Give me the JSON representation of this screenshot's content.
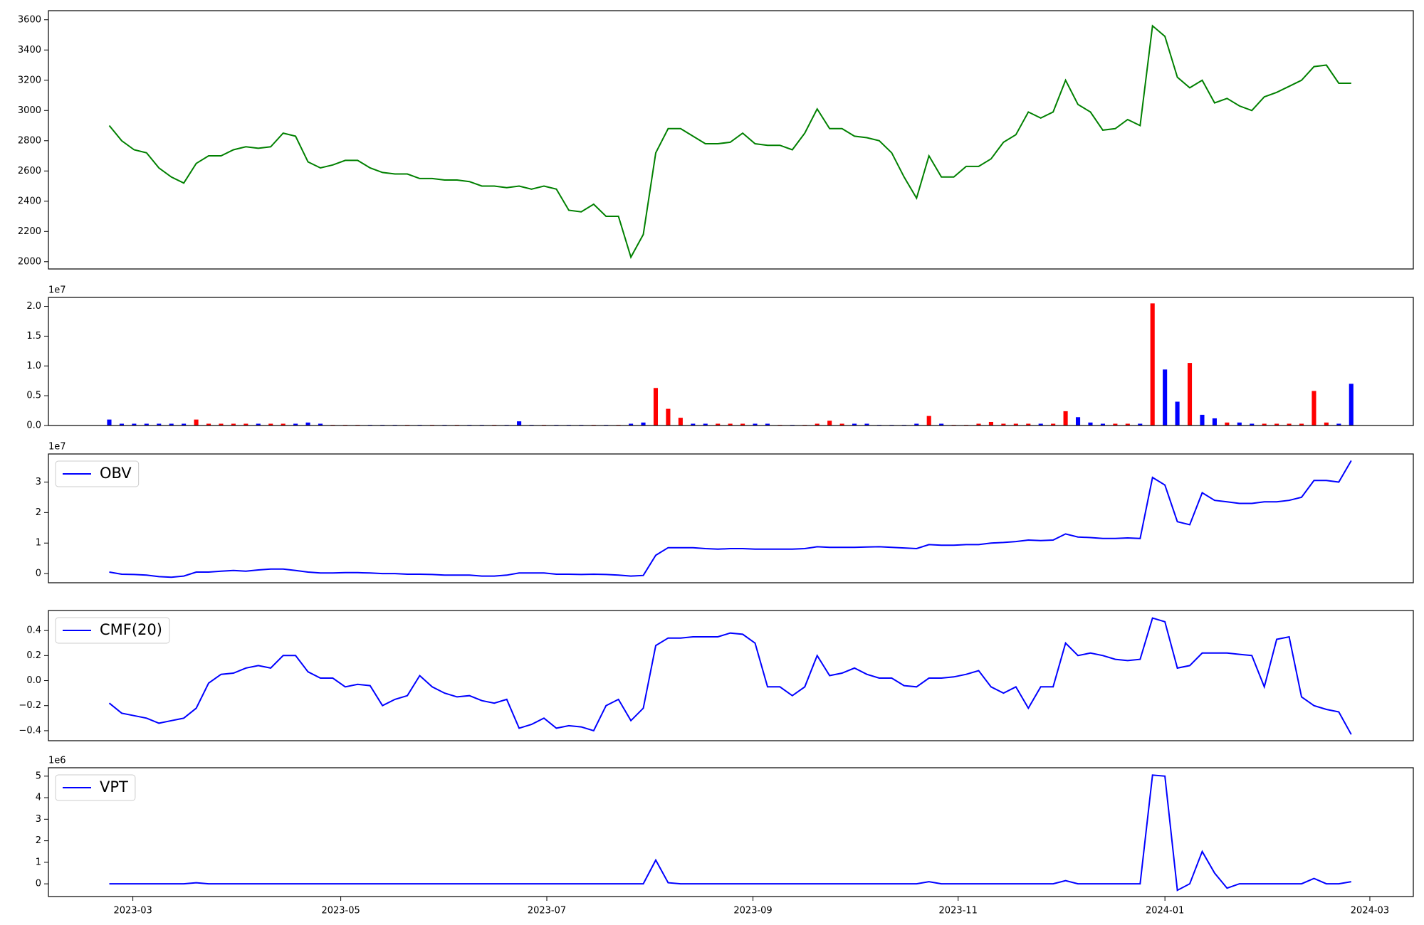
{
  "chart_data": [
    {
      "type": "line",
      "color": "#008000",
      "xlim": [
        -4.9,
        105
      ],
      "ylim": [
        1952,
        3660
      ],
      "yticks": [
        2000,
        2200,
        2400,
        2600,
        2800,
        3000,
        3200,
        3400,
        3600
      ],
      "values": [
        2900,
        2800,
        2740,
        2720,
        2620,
        2560,
        2520,
        2650,
        2700,
        2700,
        2740,
        2760,
        2750,
        2760,
        2850,
        2830,
        2660,
        2620,
        2640,
        2670,
        2670,
        2620,
        2590,
        2580,
        2580,
        2550,
        2550,
        2540,
        2540,
        2530,
        2500,
        2500,
        2490,
        2500,
        2480,
        2500,
        2480,
        2340,
        2330,
        2380,
        2300,
        2300,
        2030,
        2180,
        2720,
        2880,
        2880,
        2830,
        2780,
        2780,
        2790,
        2850,
        2780,
        2770,
        2770,
        2740,
        2850,
        3010,
        2880,
        2880,
        2830,
        2820,
        2800,
        2720,
        2560,
        2420,
        2700,
        2560,
        2560,
        2630,
        2630,
        2680,
        2790,
        2840,
        2990,
        2950,
        2990,
        3200,
        3040,
        2990,
        2870,
        2880,
        2940,
        2900,
        3560,
        3490,
        3220,
        3150,
        3200,
        3050,
        3080,
        3030,
        3000,
        3090,
        3120,
        3160,
        3200,
        3290,
        3300,
        3180,
        3180
      ]
    },
    {
      "type": "bar",
      "y_offset_label": "1e7",
      "xlim": [
        -4.9,
        105
      ],
      "ylim": [
        0,
        2.15
      ],
      "yticks": [
        {
          "value": 0,
          "label": "0.0"
        },
        {
          "value": 0.5,
          "label": "0.5"
        },
        {
          "value": 1,
          "label": "1.0"
        },
        {
          "value": 1.5,
          "label": "1.5"
        },
        {
          "value": 2,
          "label": "2.0"
        }
      ],
      "values": [
        0.1,
        0.03,
        0.03,
        0.03,
        0.03,
        0.03,
        0.03,
        0.1,
        0.03,
        0.03,
        0.03,
        0.03,
        0.03,
        0.03,
        0.03,
        0.03,
        0.05,
        0.03,
        0.01,
        0.01,
        0.01,
        0.01,
        0.01,
        0.01,
        0.01,
        0.01,
        0.01,
        0.01,
        0.01,
        0.01,
        0.01,
        0.01,
        0.01,
        0.07,
        0.01,
        0.01,
        0.01,
        0.01,
        0.01,
        0.01,
        0.01,
        0.01,
        0.03,
        0.05,
        0.63,
        0.28,
        0.13,
        0.03,
        0.03,
        0.03,
        0.03,
        0.03,
        0.03,
        0.03,
        0.01,
        0.01,
        0.01,
        0.03,
        0.08,
        0.03,
        0.03,
        0.03,
        0.01,
        0.01,
        0.01,
        0.03,
        0.16,
        0.03,
        0.01,
        0.01,
        0.03,
        0.06,
        0.03,
        0.03,
        0.03,
        0.03,
        0.03,
        0.24,
        0.14,
        0.05,
        0.03,
        0.03,
        0.03,
        0.03,
        2.05,
        0.94,
        0.4,
        1.05,
        0.18,
        0.12,
        0.05,
        0.05,
        0.03,
        0.03,
        0.03,
        0.03,
        0.03,
        0.58,
        0.05,
        0.03,
        0.7
      ],
      "colors": [
        "blue",
        "blue",
        "blue",
        "blue",
        "blue",
        "blue",
        "blue",
        "red",
        "red",
        "red",
        "red",
        "red",
        "blue",
        "red",
        "red",
        "blue",
        "blue",
        "blue",
        "red",
        "red",
        "red",
        "blue",
        "blue",
        "blue",
        "red",
        "blue",
        "red",
        "blue",
        "red",
        "blue",
        "blue",
        "red",
        "blue",
        "blue",
        "blue",
        "red",
        "blue",
        "blue",
        "blue",
        "red",
        "blue",
        "red",
        "blue",
        "blue",
        "red",
        "red",
        "red",
        "blue",
        "blue",
        "red",
        "red",
        "red",
        "blue",
        "blue",
        "red",
        "blue",
        "red",
        "red",
        "red",
        "red",
        "blue",
        "blue",
        "blue",
        "blue",
        "blue",
        "blue",
        "red",
        "blue",
        "red",
        "red",
        "red",
        "red",
        "red",
        "red",
        "red",
        "blue",
        "red",
        "red",
        "blue",
        "blue",
        "blue",
        "red",
        "red",
        "blue",
        "red",
        "blue",
        "blue",
        "red",
        "blue",
        "blue",
        "red",
        "blue",
        "blue",
        "red",
        "red",
        "red",
        "red",
        "red",
        "red",
        "blue",
        "blue"
      ]
    },
    {
      "type": "line",
      "y_offset_label": "1e7",
      "legend": "upper left",
      "xlim": [
        -4.9,
        105
      ],
      "ylim": [
        -0.3,
        3.92
      ],
      "yticks": [
        0,
        1,
        2,
        3
      ],
      "series": [
        {
          "name": "OBV",
          "color": "#0000ff",
          "values": [
            0.05,
            -0.02,
            -0.03,
            -0.05,
            -0.1,
            -0.12,
            -0.08,
            0.05,
            0.05,
            0.08,
            0.1,
            0.08,
            0.12,
            0.15,
            0.15,
            0.1,
            0.05,
            0.02,
            0.02,
            0.03,
            0.03,
            0.02,
            0,
            0,
            -0.02,
            -0.02,
            -0.03,
            -0.05,
            -0.05,
            -0.05,
            -0.08,
            -0.08,
            -0.05,
            0.02,
            0.02,
            0.02,
            -0.02,
            -0.02,
            -0.03,
            -0.02,
            -0.03,
            -0.05,
            -0.08,
            -0.06,
            0.6,
            0.85,
            0.85,
            0.85,
            0.82,
            0.8,
            0.82,
            0.82,
            0.8,
            0.8,
            0.8,
            0.8,
            0.82,
            0.88,
            0.86,
            0.86,
            0.86,
            0.87,
            0.88,
            0.86,
            0.84,
            0.82,
            0.95,
            0.93,
            0.93,
            0.95,
            0.95,
            1.0,
            1.02,
            1.05,
            1.1,
            1.08,
            1.1,
            1.3,
            1.2,
            1.18,
            1.15,
            1.15,
            1.17,
            1.15,
            3.15,
            2.9,
            1.7,
            1.6,
            2.65,
            2.4,
            2.35,
            2.3,
            2.3,
            2.35,
            2.35,
            2.4,
            2.5,
            3.05,
            3.05,
            3.0,
            3.7
          ]
        }
      ]
    },
    {
      "type": "line",
      "legend": "upper left",
      "xlim": [
        -4.9,
        105
      ],
      "ylim": [
        -0.48,
        0.56
      ],
      "yticks": [
        {
          "value": -0.4,
          "label": "−0.4"
        },
        {
          "value": -0.2,
          "label": "−0.2"
        },
        {
          "value": 0,
          "label": "0.0"
        },
        0.2,
        0.4
      ],
      "series": [
        {
          "name": "CMF(20)",
          "color": "#0000ff",
          "values": [
            -0.18,
            -0.26,
            -0.28,
            -0.3,
            -0.34,
            -0.32,
            -0.3,
            -0.22,
            -0.02,
            0.05,
            0.06,
            0.1,
            0.12,
            0.1,
            0.2,
            0.2,
            0.07,
            0.02,
            0.02,
            -0.05,
            -0.03,
            -0.04,
            -0.2,
            -0.15,
            -0.12,
            0.04,
            -0.05,
            -0.1,
            -0.13,
            -0.12,
            -0.16,
            -0.18,
            -0.15,
            -0.38,
            -0.35,
            -0.3,
            -0.38,
            -0.36,
            -0.37,
            -0.4,
            -0.2,
            -0.15,
            -0.32,
            -0.22,
            0.28,
            0.34,
            0.34,
            0.35,
            0.35,
            0.35,
            0.38,
            0.37,
            0.3,
            -0.05,
            -0.05,
            -0.12,
            -0.05,
            0.2,
            0.04,
            0.06,
            0.1,
            0.05,
            0.02,
            0.02,
            -0.04,
            -0.05,
            0.02,
            0.02,
            0.03,
            0.05,
            0.08,
            -0.05,
            -0.1,
            -0.05,
            -0.22,
            -0.05,
            -0.05,
            0.3,
            0.2,
            0.22,
            0.2,
            0.17,
            0.16,
            0.17,
            0.5,
            0.47,
            0.1,
            0.12,
            0.22,
            0.22,
            0.22,
            0.21,
            0.2,
            -0.05,
            0.33,
            0.35,
            -0.13,
            -0.2,
            -0.23,
            -0.25,
            -0.43
          ]
        }
      ]
    },
    {
      "type": "line",
      "y_offset_label": "1e6",
      "legend": "upper left",
      "xlim": [
        -4.9,
        105
      ],
      "ylim": [
        -0.59,
        5.39
      ],
      "yticks": [
        0,
        1,
        2,
        3,
        4,
        5
      ],
      "xticks": [
        {
          "value": 1.9,
          "label": "2023-03"
        },
        {
          "value": 18.64,
          "label": "2023-05"
        },
        {
          "value": 35.23,
          "label": "2023-07"
        },
        {
          "value": 51.83,
          "label": "2023-09"
        },
        {
          "value": 68.35,
          "label": "2023-11"
        },
        {
          "value": 85.0,
          "label": "2024-01"
        },
        {
          "value": 101.5,
          "label": "2024-03"
        }
      ],
      "series": [
        {
          "name": "VPT",
          "color": "#0000ff",
          "values": [
            0,
            0,
            0,
            0,
            0,
            0,
            0,
            0.05,
            0,
            0,
            0,
            0,
            0,
            0,
            0,
            0,
            0,
            0,
            0,
            0,
            0,
            0,
            0,
            0,
            0,
            0,
            0,
            0,
            0,
            0,
            0,
            0,
            0,
            0,
            0,
            0,
            0,
            0,
            0,
            0,
            0,
            0,
            0,
            0,
            1.1,
            0.05,
            0,
            0,
            0,
            0,
            0,
            0,
            0,
            0,
            0,
            0,
            0,
            0,
            0,
            0,
            0,
            0,
            0,
            0,
            0,
            0,
            0.1,
            0,
            0,
            0,
            0,
            0,
            0,
            0,
            0,
            0,
            0,
            0.15,
            0,
            0,
            0,
            0,
            0,
            0,
            5.05,
            5.0,
            -0.3,
            0,
            1.5,
            0.5,
            -0.2,
            0,
            0,
            0,
            0,
            0,
            0,
            0.25,
            0,
            0,
            0.1
          ]
        }
      ]
    }
  ]
}
